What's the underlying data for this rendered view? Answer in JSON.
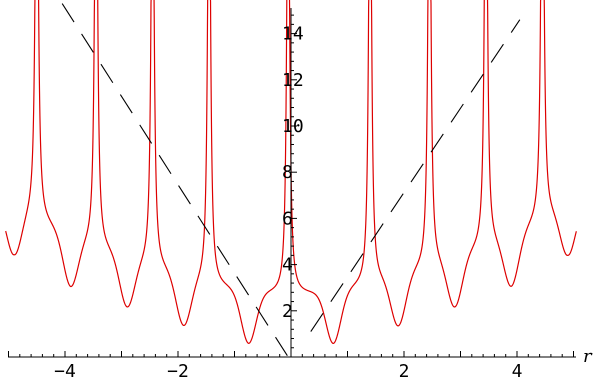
{
  "chart_data": {
    "type": "line",
    "title": "",
    "xlabel": "r",
    "ylabel": "",
    "xlim": [
      -5.05,
      5.05
    ],
    "ylim": [
      0,
      15
    ],
    "grid": false,
    "legend": "none",
    "x_ticks": [
      -4,
      -2,
      2,
      4
    ],
    "x_tick_labels": [
      "−4",
      "−2",
      "2",
      "4"
    ],
    "y_ticks": [
      2,
      4,
      6,
      8,
      10,
      12,
      14
    ],
    "y_tick_labels": [
      "2",
      "4",
      "6",
      "8",
      "10",
      "12",
      "14"
    ],
    "colors": {
      "curve": "#dd0000",
      "reference": "#000000",
      "axes": "#000000"
    },
    "series": [
      {
        "style": "solid",
        "color": "#dd0000",
        "description_points": [
          {
            "x": -4.9,
            "y": 4.3
          },
          {
            "x": -3.9,
            "y": 2.9
          },
          {
            "x": -2.9,
            "y": 2.0
          },
          {
            "x": -1.9,
            "y": 1.2
          },
          {
            "x": -0.75,
            "y": 0.5
          },
          {
            "x": 0.75,
            "y": 0.5
          },
          {
            "x": 1.9,
            "y": 1.2
          },
          {
            "x": 2.9,
            "y": 2.0
          },
          {
            "x": 3.9,
            "y": 2.9
          },
          {
            "x": 4.9,
            "y": 4.3
          }
        ]
      },
      {
        "style": "dashed",
        "color": "#000000",
        "points": [
          {
            "x": -4.05,
            "y": 15.3
          },
          {
            "x": -0.05,
            "y": 0.0
          },
          {
            "x": 0.35,
            "y": 1.1
          },
          {
            "x": 4.05,
            "y": 14.6
          }
        ]
      }
    ]
  }
}
